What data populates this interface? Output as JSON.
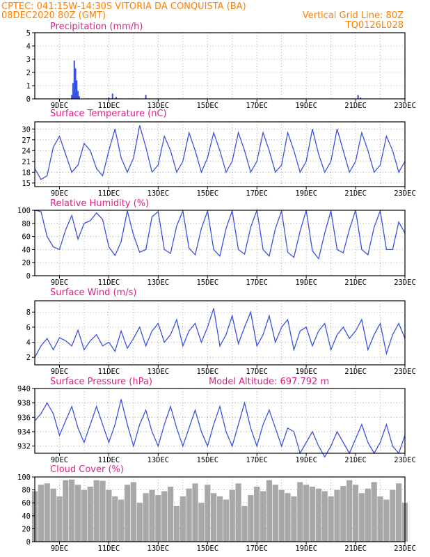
{
  "header": {
    "line1": "CPTEC:   041:15W-14:30S   VITORIA DA CONQUISTA (BA)",
    "line2_left": "08DEC2020 80Z (GMT)",
    "line2_right": "Vertical Grid Line: 80Z",
    "line3_right": "TQ0126L028"
  },
  "colors": {
    "line": "#3a50e0",
    "bar_precip": "#3a50e0",
    "bar_cloud": "#a8a8a8",
    "title": "#e0208a",
    "header": "#ff7f00"
  },
  "x_labels": [
    "9DEC",
    "11DEC",
    "13DEC",
    "15DEC",
    "17DEC",
    "19DEC",
    "21DEC",
    "23DEC"
  ],
  "chart_data": [
    {
      "id": "precip",
      "type": "bar",
      "title": "Precipitation (mm/h)",
      "ylim": [
        0,
        5
      ],
      "yticks": [
        0,
        1,
        2,
        3,
        4,
        5
      ],
      "xlim": [
        0,
        15.0
      ],
      "x": [
        1.5,
        1.55,
        1.6,
        1.65,
        1.7,
        1.75,
        1.8,
        3.0,
        3.15,
        3.3,
        4.5,
        13.1,
        13.2
      ],
      "values": [
        0.3,
        1.2,
        2.9,
        2.3,
        1.4,
        0.6,
        0.2,
        0.1,
        0.4,
        0.15,
        0.3,
        0.3,
        0.1
      ]
    },
    {
      "id": "temp",
      "type": "line",
      "title": "Surface Temperature (nC)",
      "ylim": [
        14,
        32
      ],
      "yticks": [
        15,
        18,
        21,
        24,
        27,
        30
      ],
      "xlim": [
        0,
        15.0
      ],
      "x": [
        0,
        0.25,
        0.5,
        0.75,
        1.0,
        1.25,
        1.5,
        1.75,
        2.0,
        2.25,
        2.5,
        2.75,
        3.0,
        3.25,
        3.5,
        3.75,
        4.0,
        4.25,
        4.5,
        4.75,
        5.0,
        5.25,
        5.5,
        5.75,
        6.0,
        6.25,
        6.5,
        6.75,
        7.0,
        7.25,
        7.5,
        7.75,
        8.0,
        8.25,
        8.5,
        8.75,
        9.0,
        9.25,
        9.5,
        9.75,
        10.0,
        10.25,
        10.5,
        10.75,
        11.0,
        11.25,
        11.5,
        11.75,
        12.0,
        12.25,
        12.5,
        12.75,
        13.0,
        13.25,
        13.5,
        13.75,
        14.0,
        14.25,
        14.5,
        14.75,
        15.0
      ],
      "values": [
        19,
        16,
        17,
        25,
        28,
        23,
        18,
        20,
        26,
        24,
        19,
        17,
        24,
        30,
        22,
        18,
        22,
        31,
        25,
        18,
        20,
        28,
        24,
        18,
        21,
        29,
        24,
        18,
        22,
        29,
        24,
        18,
        21,
        29,
        24,
        18,
        21,
        29,
        24,
        18,
        20,
        29,
        24,
        18,
        21,
        30,
        23,
        18,
        21,
        30,
        24,
        18,
        21,
        29,
        24,
        18,
        20,
        28,
        24,
        18,
        21
      ]
    },
    {
      "id": "rh",
      "type": "line",
      "title": "Relative Humidity (%)",
      "ylim": [
        0,
        100
      ],
      "yticks": [
        0,
        20,
        40,
        60,
        80,
        100
      ],
      "xlim": [
        0,
        15.0
      ],
      "x": [
        0,
        0.25,
        0.5,
        0.75,
        1.0,
        1.25,
        1.5,
        1.75,
        2.0,
        2.25,
        2.5,
        2.75,
        3.0,
        3.25,
        3.5,
        3.75,
        4.0,
        4.25,
        4.5,
        4.75,
        5.0,
        5.25,
        5.5,
        5.75,
        6.0,
        6.25,
        6.5,
        6.75,
        7.0,
        7.25,
        7.5,
        7.75,
        8.0,
        8.25,
        8.5,
        8.75,
        9.0,
        9.25,
        9.5,
        9.75,
        10.0,
        10.25,
        10.5,
        10.75,
        11.0,
        11.25,
        11.5,
        11.75,
        12.0,
        12.25,
        12.5,
        12.75,
        13.0,
        13.25,
        13.5,
        13.75,
        14.0,
        14.25,
        14.5,
        14.75,
        15.0
      ],
      "values": [
        100,
        98,
        60,
        44,
        40,
        70,
        92,
        56,
        80,
        84,
        96,
        86,
        44,
        31,
        52,
        99,
        62,
        36,
        40,
        90,
        98,
        40,
        34,
        76,
        99,
        42,
        32,
        72,
        99,
        40,
        30,
        72,
        99,
        40,
        33,
        74,
        100,
        40,
        30,
        72,
        99,
        36,
        28,
        68,
        100,
        38,
        26,
        65,
        99,
        40,
        35,
        71,
        100,
        40,
        32,
        74,
        99,
        40,
        40,
        82,
        65
      ]
    },
    {
      "id": "wind",
      "type": "line",
      "title": "Surface Wind (m/s)",
      "ylim": [
        1,
        9.5
      ],
      "yticks": [
        2,
        4,
        6,
        8
      ],
      "xlim": [
        0,
        15.0
      ],
      "x": [
        0,
        0.25,
        0.5,
        0.75,
        1.0,
        1.25,
        1.5,
        1.75,
        2.0,
        2.25,
        2.5,
        2.75,
        3.0,
        3.25,
        3.5,
        3.75,
        4.0,
        4.25,
        4.5,
        4.75,
        5.0,
        5.25,
        5.5,
        5.75,
        6.0,
        6.25,
        6.5,
        6.75,
        7.0,
        7.25,
        7.5,
        7.75,
        8.0,
        8.25,
        8.5,
        8.75,
        9.0,
        9.25,
        9.5,
        9.75,
        10.0,
        10.25,
        10.5,
        10.75,
        11.0,
        11.25,
        11.5,
        11.75,
        12.0,
        12.25,
        12.5,
        12.75,
        13.0,
        13.25,
        13.5,
        13.75,
        14.0,
        14.25,
        14.5,
        14.75,
        15.0
      ],
      "values": [
        2,
        3.5,
        4.5,
        3,
        4.6,
        4.2,
        3.5,
        5.6,
        3,
        4.2,
        5,
        3.5,
        4,
        2.8,
        5.5,
        3.2,
        4.5,
        6,
        3.5,
        5.5,
        6.5,
        4,
        5,
        7,
        3.5,
        5.5,
        6.5,
        4,
        6,
        8.5,
        3.5,
        5,
        7.5,
        3.8,
        6,
        8,
        3.5,
        5,
        7.5,
        4,
        6,
        7,
        3,
        5.5,
        6,
        3.5,
        5.5,
        6.5,
        3,
        5,
        6,
        4.5,
        5.5,
        7,
        3,
        5,
        6.5,
        2.5,
        5,
        6.5,
        4.5
      ]
    },
    {
      "id": "pressure",
      "type": "line",
      "title": "Surface Pressure (hPa)",
      "subtitle": "Model Altitude: 697.792 m",
      "ylim": [
        931,
        940
      ],
      "yticks": [
        932,
        934,
        936,
        938,
        940
      ],
      "xlim": [
        0,
        15.0
      ],
      "x": [
        0,
        0.25,
        0.5,
        0.75,
        1.0,
        1.25,
        1.5,
        1.75,
        2.0,
        2.25,
        2.5,
        2.75,
        3.0,
        3.25,
        3.5,
        3.75,
        4.0,
        4.25,
        4.5,
        4.75,
        5.0,
        5.25,
        5.5,
        5.75,
        6.0,
        6.25,
        6.5,
        6.75,
        7.0,
        7.25,
        7.5,
        7.75,
        8.0,
        8.25,
        8.5,
        8.75,
        9.0,
        9.25,
        9.5,
        9.75,
        10.0,
        10.25,
        10.5,
        10.75,
        11.0,
        11.25,
        11.5,
        11.75,
        12.0,
        12.25,
        12.5,
        12.75,
        13.0,
        13.25,
        13.5,
        13.75,
        14.0,
        14.25,
        14.5,
        14.75,
        15.0
      ],
      "values": [
        935.5,
        936.5,
        938,
        936.5,
        933.5,
        935.5,
        937.5,
        934.5,
        932.5,
        935,
        937.5,
        935,
        932.5,
        935,
        938.5,
        935,
        932,
        935,
        937,
        934,
        932,
        935,
        937.5,
        934.5,
        932,
        934.5,
        937,
        934,
        932,
        935,
        937.5,
        934,
        932,
        935,
        938,
        934.5,
        932,
        935,
        937,
        934.5,
        932,
        934.5,
        934,
        931,
        932.5,
        934,
        932,
        930.5,
        932,
        934,
        932.5,
        931,
        933,
        935,
        932.5,
        931,
        932.5,
        935,
        932,
        931,
        933.5
      ]
    },
    {
      "id": "cloud",
      "type": "bar",
      "title": "Cloud Cover (%)",
      "ylim": [
        0,
        100
      ],
      "yticks": [
        0,
        20,
        40,
        60,
        80,
        100
      ],
      "xlim": [
        0,
        15.0
      ],
      "x": [
        0,
        0.25,
        0.5,
        0.75,
        1.0,
        1.25,
        1.5,
        1.75,
        2.0,
        2.25,
        2.5,
        2.75,
        3.0,
        3.25,
        3.5,
        3.75,
        4.0,
        4.25,
        4.5,
        4.75,
        5.0,
        5.25,
        5.5,
        5.75,
        6.0,
        6.25,
        6.5,
        6.75,
        7.0,
        7.25,
        7.5,
        7.75,
        8.0,
        8.25,
        8.5,
        8.75,
        9.0,
        9.25,
        9.5,
        9.75,
        10.0,
        10.25,
        10.5,
        10.75,
        11.0,
        11.25,
        11.5,
        11.75,
        12.0,
        12.25,
        12.5,
        12.75,
        13.0,
        13.25,
        13.5,
        13.75,
        14.0,
        14.25,
        14.5,
        14.75,
        15.0
      ],
      "values": [
        78,
        88,
        90,
        82,
        70,
        95,
        96,
        88,
        80,
        85,
        95,
        94,
        80,
        70,
        65,
        88,
        92,
        60,
        75,
        80,
        72,
        78,
        85,
        55,
        70,
        82,
        90,
        60,
        88,
        75,
        70,
        65,
        80,
        90,
        55,
        72,
        85,
        78,
        95,
        88,
        80,
        75,
        70,
        92,
        88,
        85,
        82,
        78,
        70,
        80,
        86,
        95,
        88,
        75,
        82,
        92,
        70,
        65,
        80,
        90,
        60
      ]
    }
  ]
}
